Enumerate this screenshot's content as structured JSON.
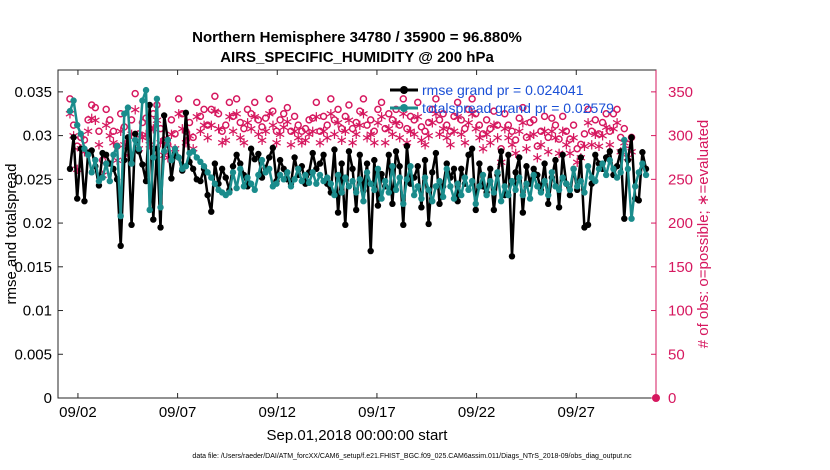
{
  "chart_data": {
    "type": "line",
    "title_line1": "Northern Hemisphere 34780 / 35900 = 96.880%",
    "title_line2": "AIRS_SPECIFIC_HUMIDITY @ 200 hPa",
    "xlabel": "Sep.01,2018 00:00:00 start",
    "ylabel_left": "rmse and totalspread",
    "ylabel_right": "# of obs: o=possible; ∗=evaluated",
    "x_tick_labels": [
      "09/02",
      "09/07",
      "09/12",
      "09/17",
      "09/22",
      "09/27"
    ],
    "x_tick_days": [
      2,
      7,
      12,
      17,
      22,
      27
    ],
    "xlim_days": [
      1,
      31
    ],
    "ylim_left": [
      0,
      0.0375
    ],
    "y_ticks_left": [
      "0",
      "0.005",
      "0.01",
      "0.015",
      "0.02",
      "0.025",
      "0.03",
      "0.035"
    ],
    "y_tick_values_left": [
      0,
      0.005,
      0.01,
      0.015,
      0.02,
      0.025,
      0.03,
      0.035
    ],
    "ylim_right": [
      0,
      375
    ],
    "y_ticks_right": [
      "0",
      "50",
      "100",
      "150",
      "200",
      "250",
      "300",
      "350"
    ],
    "y_tick_values_right": [
      0,
      50,
      100,
      150,
      200,
      250,
      300,
      350
    ],
    "legend": [
      {
        "label": "rmse grand pr = 0.024041",
        "color": "#000000"
      },
      {
        "label": "totalspread grand pr = 0.02579",
        "color": "#1a8c8c"
      }
    ],
    "colors": {
      "rmse": "#000000",
      "spread": "#1a8c8c",
      "obs": "#d6185f"
    },
    "series": [
      {
        "name": "rmse",
        "values": [
          0.0262,
          0.0298,
          0.0228,
          0.0285,
          0.0225,
          0.028,
          0.0283,
          0.0265,
          0.0243,
          0.028,
          0.0278,
          0.0268,
          0.0262,
          0.025,
          0.0174,
          0.0272,
          0.0298,
          0.0198,
          0.0302,
          0.0282,
          0.0267,
          0.0248,
          0.0335,
          0.0204,
          0.0285,
          0.0195,
          0.0323,
          0.0295,
          0.0251,
          0.028,
          0.0275,
          0.026,
          0.0326,
          0.027,
          0.0262,
          0.025,
          0.0248,
          0.0262,
          0.0232,
          0.0213,
          0.0268,
          0.0245,
          0.0262,
          0.0252,
          0.0238,
          0.0265,
          0.0278,
          0.0268,
          0.0255,
          0.0242,
          0.0285,
          0.0273,
          0.0279,
          0.0252,
          0.0263,
          0.0275,
          0.0286,
          0.0248,
          0.0272,
          0.0262,
          0.025,
          0.0245,
          0.0275,
          0.0255,
          0.0265,
          0.0245,
          0.0258,
          0.028,
          0.0262,
          0.0268,
          0.0278,
          0.0245,
          0.0235,
          0.0284,
          0.0212,
          0.0268,
          0.0198,
          0.0282,
          0.0262,
          0.0215,
          0.0278,
          0.0237,
          0.0268,
          0.0168,
          0.0272,
          0.022,
          0.0256,
          0.0242,
          0.0278,
          0.0222,
          0.0282,
          0.0265,
          0.0198,
          0.0288,
          0.0245,
          0.0252,
          0.0265,
          0.0218,
          0.0272,
          0.0199,
          0.0258,
          0.028,
          0.0222,
          0.0242,
          0.0268,
          0.0252,
          0.0262,
          0.0225,
          0.0262,
          0.0245,
          0.0278,
          0.0285,
          0.0215,
          0.0268,
          0.0242,
          0.0235,
          0.0262,
          0.0215,
          0.0255,
          0.0282,
          0.0232,
          0.0278,
          0.0162,
          0.0258,
          0.0275,
          0.0212,
          0.0265,
          0.0245,
          0.0262,
          0.0255,
          0.0238,
          0.0268,
          0.0222,
          0.0252,
          0.0272,
          0.0218,
          0.0278,
          0.0245,
          0.0232,
          0.0262,
          0.0238,
          0.0275,
          0.0195,
          0.0198,
          0.0245,
          0.0278,
          0.0268,
          0.0262,
          0.0275,
          0.0282,
          0.0255,
          0.0265,
          0.0282,
          0.0205,
          0.0272,
          0.0298,
          0.0228,
          0.0226,
          0.0281,
          0.0262
        ]
      },
      {
        "name": "totalspread",
        "values": [
          0.0328,
          0.034,
          0.0312,
          0.0302,
          0.0285,
          0.0278,
          0.0258,
          0.0272,
          0.0248,
          0.0252,
          0.0268,
          0.0248,
          0.0278,
          0.0288,
          0.0208,
          0.0325,
          0.0332,
          0.0268,
          0.0295,
          0.0285,
          0.034,
          0.0352,
          0.0215,
          0.0275,
          0.0342,
          0.0218,
          0.0282,
          0.0295,
          0.0272,
          0.0285,
          0.0275,
          0.0262,
          0.0265,
          0.028,
          0.0282,
          0.0275,
          0.027,
          0.0265,
          0.0258,
          0.0252,
          0.0245,
          0.0238,
          0.0235,
          0.0232,
          0.0235,
          0.0258,
          0.024,
          0.0262,
          0.0242,
          0.0252,
          0.0245,
          0.0238,
          0.0255,
          0.0272,
          0.0258,
          0.0262,
          0.0242,
          0.0245,
          0.0255,
          0.025,
          0.0258,
          0.0242,
          0.025,
          0.0262,
          0.0248,
          0.0255,
          0.0246,
          0.0258,
          0.0245,
          0.0255,
          0.0248,
          0.0252,
          0.0245,
          0.0232,
          0.0255,
          0.0235,
          0.0252,
          0.0242,
          0.0248,
          0.0235,
          0.025,
          0.0225,
          0.0258,
          0.0245,
          0.0238,
          0.0262,
          0.0228,
          0.0248,
          0.0235,
          0.0265,
          0.0238,
          0.0252,
          0.0222,
          0.025,
          0.0265,
          0.0232,
          0.0242,
          0.0228,
          0.0252,
          0.0238,
          0.0225,
          0.0242,
          0.0248,
          0.023,
          0.0262,
          0.0242,
          0.0228,
          0.0245,
          0.0232,
          0.0252,
          0.0238,
          0.0248,
          0.0222,
          0.0242,
          0.0255,
          0.0232,
          0.0248,
          0.0235,
          0.0258,
          0.0225,
          0.0242,
          0.0232,
          0.0248,
          0.0238,
          0.0252,
          0.0232,
          0.0245,
          0.0228,
          0.0255,
          0.0242,
          0.0235,
          0.0248,
          0.0232,
          0.0258,
          0.0242,
          0.0238,
          0.0252,
          0.0245,
          0.0238,
          0.0262,
          0.0242,
          0.0248,
          0.0235,
          0.0265,
          0.0252,
          0.0248,
          0.0262,
          0.0268,
          0.0255,
          0.0272,
          0.0262,
          0.0252,
          0.0258,
          0.0295,
          0.0262,
          0.0205,
          0.0242,
          0.0258,
          0.0268,
          0.0255
        ]
      },
      {
        "name": "possible",
        "values": [
          342,
          312,
          288,
          298,
          295,
          318,
          335,
          332,
          305,
          272,
          330,
          318,
          305,
          288,
          325,
          310,
          292,
          318,
          348,
          302,
          315,
          320,
          308,
          325,
          335,
          308,
          295,
          290,
          318,
          302,
          342,
          325,
          305,
          315,
          298,
          338,
          322,
          330,
          312,
          330,
          345,
          325,
          305,
          312,
          338,
          322,
          342,
          315,
          308,
          330,
          325,
          338,
          318,
          310,
          320,
          342,
          328,
          305,
          318,
          325,
          332,
          305,
          322,
          312,
          305,
          308,
          318,
          320,
          338,
          305,
          322,
          312,
          342,
          318,
          330,
          308,
          322,
          335,
          308,
          315,
          328,
          342,
          312,
          318,
          305,
          330,
          338,
          308,
          325,
          318,
          330,
          312,
          342,
          308,
          322,
          318,
          338,
          310,
          305,
          315,
          330,
          342,
          318,
          325,
          312,
          305,
          322,
          338,
          318,
          308,
          330,
          342,
          325,
          312,
          302,
          318,
          308,
          328,
          312,
          285,
          325,
          312,
          305,
          295,
          320,
          332,
          298,
          315,
          318,
          288,
          305,
          322,
          298,
          320,
          312,
          296,
          322,
          305,
          296,
          312,
          285,
          290,
          302,
          330,
          305,
          318,
          302,
          315,
          325,
          305,
          325,
          330,
          298,
          308,
          290,
          298
        ]
      },
      {
        "name": "evaluated",
        "values": [
          325,
          300,
          262,
          285,
          282,
          305,
          320,
          318,
          290,
          255,
          312,
          300,
          292,
          272,
          305,
          290,
          278,
          302,
          330,
          285,
          298,
          302,
          290,
          308,
          318,
          292,
          278,
          275,
          302,
          285,
          325,
          308,
          292,
          300,
          285,
          322,
          305,
          312,
          298,
          312,
          328,
          308,
          292,
          295,
          322,
          305,
          325,
          298,
          292,
          315,
          308,
          322,
          302,
          295,
          305,
          325,
          312,
          292,
          302,
          310,
          316,
          290,
          305,
          298,
          292,
          295,
          302,
          305,
          322,
          292,
          305,
          298,
          325,
          302,
          315,
          295,
          305,
          318,
          292,
          302,
          312,
          325,
          298,
          302,
          292,
          315,
          322,
          292,
          308,
          302,
          315,
          298,
          325,
          292,
          305,
          302,
          322,
          295,
          290,
          300,
          315,
          325,
          302,
          308,
          298,
          290,
          305,
          322,
          302,
          292,
          315,
          325,
          308,
          298,
          285,
          302,
          292,
          312,
          298,
          270,
          308,
          298,
          290,
          280,
          305,
          315,
          285,
          300,
          302,
          275,
          290,
          305,
          282,
          305,
          298,
          280,
          305,
          290,
          280,
          298,
          270,
          275,
          288,
          315,
          290,
          302,
          288,
          300,
          310,
          290,
          308,
          315,
          282,
          292,
          275,
          282
        ]
      }
    ]
  },
  "footnote": "data file: /Users/raeder/DAI/ATM_forcXX/CAM6_setup/f.e21.FHIST_BGC.f09_025.CAM6assim.011/Diags_NTrS_2018-09/obs_diag_output.nc"
}
